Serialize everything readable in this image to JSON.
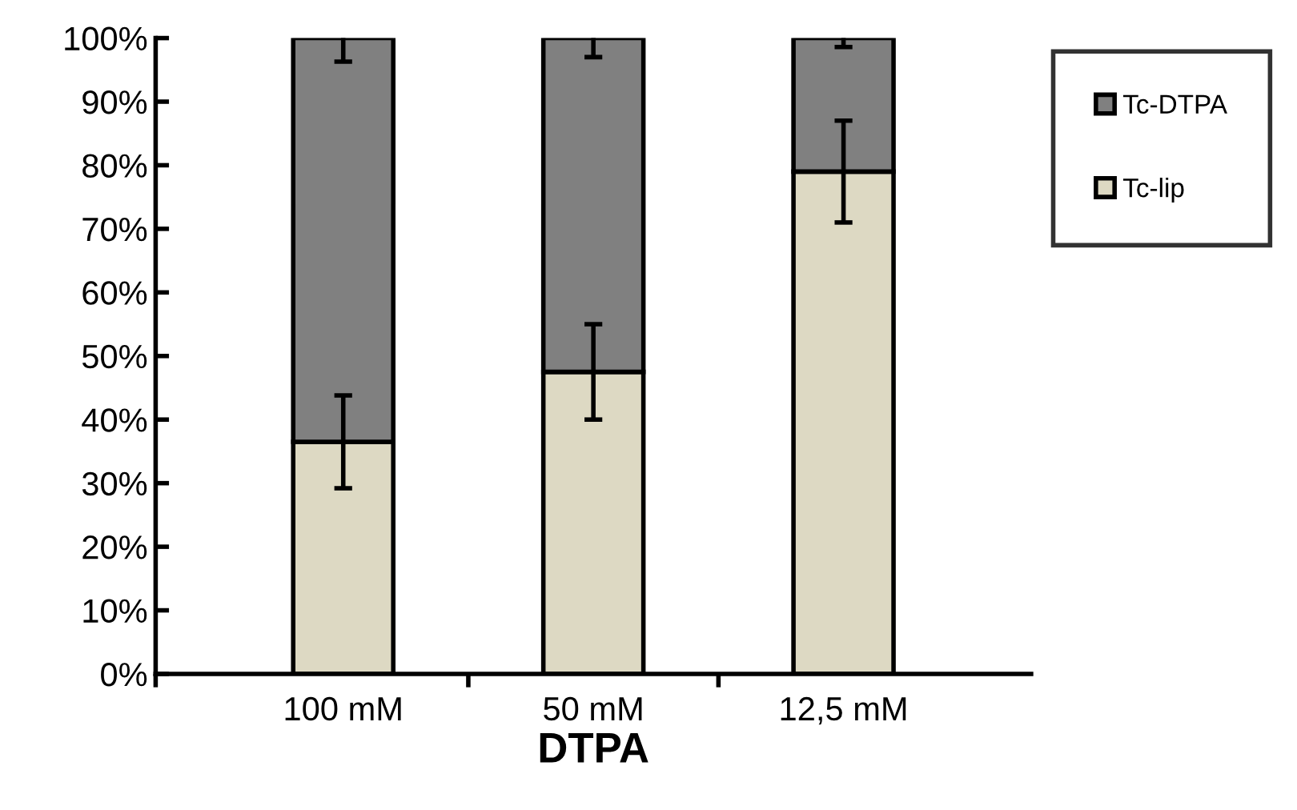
{
  "chart_data": {
    "type": "bar",
    "stacked": true,
    "xlabel": "DTPA",
    "categories": [
      "100 mM",
      "50 mM",
      "12,5 mM"
    ],
    "series": [
      {
        "name": "Tc-lip",
        "color": "#ddd9c3",
        "values": [
          36.5,
          47.5,
          79.0
        ],
        "errors": [
          7.3,
          7.5,
          8
        ]
      },
      {
        "name": "Tc-DTPA",
        "color": "#808080",
        "values": [
          63.5,
          52.5,
          21.0
        ],
        "errors": [
          3.7,
          3,
          1.4
        ]
      }
    ],
    "ylim": [
      0,
      100
    ],
    "yticks": [
      {
        "value": 0,
        "label": "0%"
      },
      {
        "value": 10,
        "label": "10%"
      },
      {
        "value": 20,
        "label": "20%"
      },
      {
        "value": 30,
        "label": "30%"
      },
      {
        "value": 40,
        "label": "40%"
      },
      {
        "value": 50,
        "label": "50%"
      },
      {
        "value": 60,
        "label": "60%"
      },
      {
        "value": 70,
        "label": "70%"
      },
      {
        "value": 80,
        "label": "80%"
      },
      {
        "value": 90,
        "label": "90%"
      },
      {
        "value": 100,
        "label": "100%"
      }
    ],
    "grid": false,
    "legend": "top right"
  }
}
